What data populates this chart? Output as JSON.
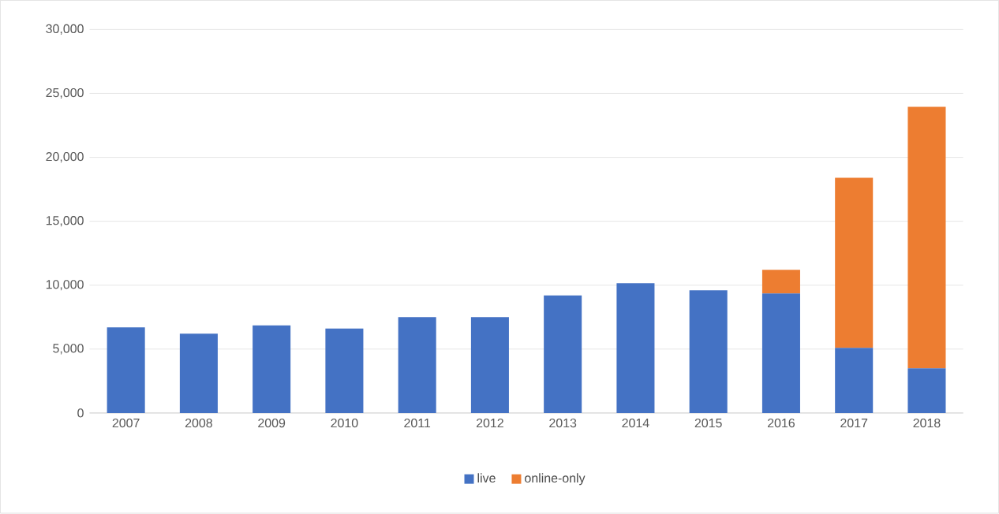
{
  "chart_data": {
    "type": "bar",
    "stacked": true,
    "categories": [
      "2007",
      "2008",
      "2009",
      "2010",
      "2011",
      "2012",
      "2013",
      "2014",
      "2015",
      "2016",
      "2017",
      "2018"
    ],
    "series": [
      {
        "name": "live",
        "color": "#4472c4",
        "values": [
          6700,
          6200,
          6850,
          6600,
          7500,
          7500,
          9200,
          10150,
          9600,
          9350,
          5100,
          3500
        ]
      },
      {
        "name": "online-only",
        "color": "#ed7d31",
        "values": [
          0,
          0,
          0,
          0,
          0,
          0,
          0,
          0,
          0,
          1850,
          13300,
          20450
        ]
      }
    ],
    "ylim": [
      0,
      30000
    ],
    "yticks": [
      {
        "value": 0,
        "label": "0"
      },
      {
        "value": 5000,
        "label": "5,000"
      },
      {
        "value": 10000,
        "label": "10,000"
      },
      {
        "value": 15000,
        "label": "15,000"
      },
      {
        "value": 20000,
        "label": "20,000"
      },
      {
        "value": 25000,
        "label": "25,000"
      },
      {
        "value": 30000,
        "label": "30,000"
      }
    ],
    "grid": "y",
    "legend": "bottom"
  }
}
